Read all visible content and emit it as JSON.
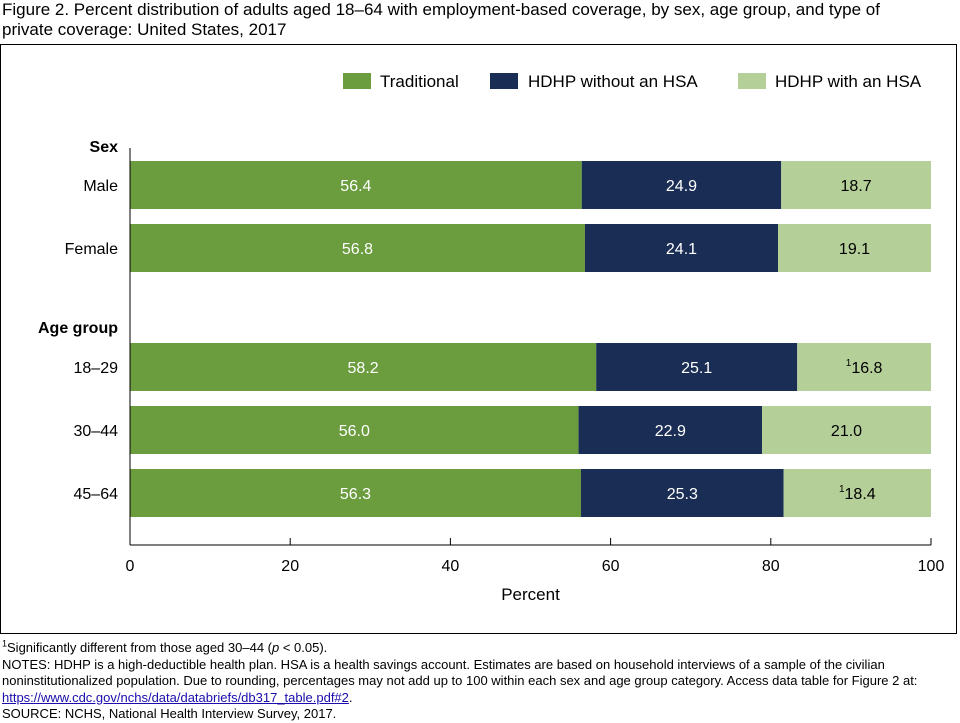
{
  "figure": {
    "title_line1": "Figure 2. Percent distribution of adults aged 18–64 with employment-based coverage, by sex, age group, and type of",
    "title_line2": "private coverage: United States, 2017"
  },
  "chart_data": {
    "type": "bar",
    "orientation": "horizontal",
    "stacked": true,
    "groups": [
      {
        "label": "Sex",
        "categories": [
          "Male",
          "Female"
        ]
      },
      {
        "label": "Age group",
        "categories": [
          "18–29",
          "30–44",
          "45–64"
        ]
      }
    ],
    "categories": [
      "Male",
      "Female",
      "18–29",
      "30–44",
      "45–64"
    ],
    "series": [
      {
        "name": "Traditional",
        "color": "#6b9c3e",
        "values": [
          56.4,
          56.8,
          58.2,
          56.0,
          56.3
        ]
      },
      {
        "name": "HDHP without an HSA",
        "color": "#1a2d55",
        "values": [
          24.9,
          24.1,
          25.1,
          22.9,
          25.3
        ]
      },
      {
        "name": "HDHP with an HSA",
        "color": "#b4cf98",
        "values": [
          18.7,
          19.1,
          16.8,
          21.0,
          18.4
        ]
      }
    ],
    "value_marks": [
      [
        null,
        null,
        null
      ],
      [
        null,
        null,
        null
      ],
      [
        null,
        null,
        "1"
      ],
      [
        null,
        null,
        null
      ],
      [
        null,
        null,
        "1"
      ]
    ],
    "xlabel": "Percent",
    "xlim": [
      0,
      100
    ],
    "xticks": [
      0,
      20,
      40,
      60,
      80,
      100
    ],
    "legend_position": "top-right",
    "grid": false
  },
  "notes": {
    "footnote_mark": "1",
    "footnote_text": "Significantly different from those aged 30–44 (",
    "footnote_p": "p",
    "footnote_rest": " < 0.05).",
    "notes_line1": "NOTES: HDHP is a high-deductible health plan. HSA is a health savings account. Estimates are based on household interviews of a sample of the civilian",
    "notes_line2": "noninstitutionalized population. Due to rounding, percentages may not add up to 100 within each sex and age group category. Access data table for Figure 2 at:",
    "link": "https://www.cdc.gov/nchs/data/databriefs/db317_table.pdf#2",
    "link_after": ".",
    "source": "SOURCE: NCHS, National Health Interview Survey, 2017."
  }
}
